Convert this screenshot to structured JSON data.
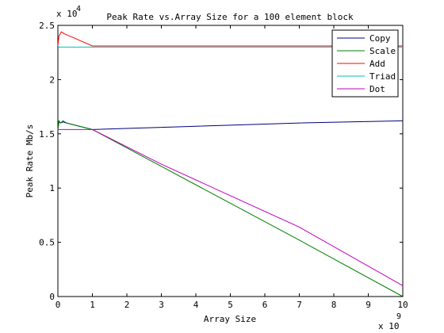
{
  "chart_data": {
    "type": "line",
    "title": "Peak Rate vs.Array Size for a 100 element block",
    "xlabel": "Array Size",
    "ylabel": "Peak Rate Mb/s",
    "xlim": [
      0,
      10
    ],
    "ylim": [
      0,
      2.5
    ],
    "x_multiplier_label": "x 10",
    "x_multiplier_exp": "9",
    "y_multiplier_label": "x 10",
    "y_multiplier_exp": "4",
    "xticks": [
      "0",
      "1",
      "2",
      "3",
      "4",
      "5",
      "6",
      "7",
      "8",
      "9",
      "10"
    ],
    "yticks": [
      "0",
      "0.5",
      "1",
      "1.5",
      "2",
      "2.5"
    ],
    "grid": false,
    "legend_position": "top-right",
    "series": [
      {
        "name": "Copy",
        "color": "#00007f",
        "x": [
          0,
          0.03,
          0.08,
          0.15,
          0.25,
          0.5,
          1,
          3,
          5,
          7,
          10
        ],
        "y": [
          1.53,
          1.61,
          1.6,
          1.61,
          1.6,
          1.58,
          1.54,
          1.56,
          1.58,
          1.6,
          1.62
        ]
      },
      {
        "name": "Scale",
        "color": "#007f00",
        "x": [
          0,
          0.03,
          0.08,
          0.15,
          0.25,
          0.5,
          1,
          3,
          5,
          7,
          10
        ],
        "y": [
          1.54,
          1.62,
          1.6,
          1.62,
          1.6,
          1.58,
          1.54,
          1.2,
          0.86,
          0.52,
          0.0
        ]
      },
      {
        "name": "Add",
        "color": "#ff0000",
        "x": [
          0,
          0.03,
          0.1,
          0.2,
          0.5,
          1,
          3,
          5,
          7,
          10
        ],
        "y": [
          2.31,
          2.4,
          2.44,
          2.42,
          2.38,
          2.31,
          2.31,
          2.31,
          2.31,
          2.31
        ]
      },
      {
        "name": "Triad",
        "color": "#00bfbf",
        "x": [
          0,
          0.03,
          0.1,
          0.5,
          1,
          3,
          5,
          7,
          10
        ],
        "y": [
          2.31,
          2.3,
          2.3,
          2.3,
          2.3,
          2.3,
          2.3,
          2.3,
          2.3
        ]
      },
      {
        "name": "Dot",
        "color": "#bf00bf",
        "x": [
          0,
          0.03,
          0.1,
          0.5,
          1,
          3,
          5,
          7,
          10
        ],
        "y": [
          1.54,
          1.54,
          1.54,
          1.54,
          1.54,
          1.22,
          0.93,
          0.64,
          0.1
        ]
      }
    ]
  }
}
